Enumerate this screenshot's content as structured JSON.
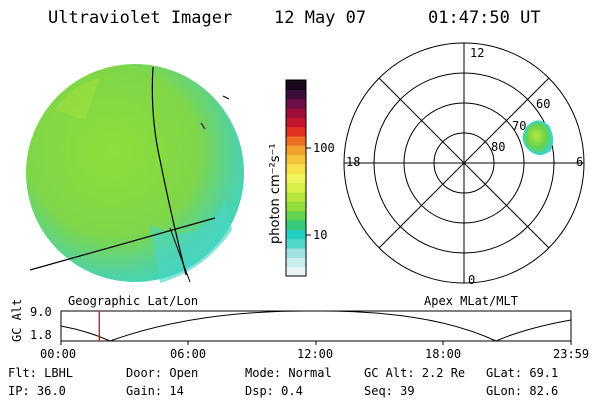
{
  "header": {
    "instrument": "Ultraviolet Imager",
    "date": "12 May 07",
    "time": "01:47:50 UT"
  },
  "colorbar": {
    "label": "photon cm⁻²s⁻¹",
    "tick_100": "100",
    "tick_10": "10",
    "colors": [
      "#eaf6f6",
      "#c9ecec",
      "#9fe2df",
      "#4fd8c8",
      "#22cfc0",
      "#38c97a",
      "#62d34e",
      "#8fdd3a",
      "#b8e63a",
      "#d8ef48",
      "#f1f65a",
      "#f7e24a",
      "#f6c43a",
      "#f2a12d",
      "#eb6e23",
      "#e2321f",
      "#c5142d",
      "#9e0f3a",
      "#6f0f4a",
      "#3b0d3c",
      "#160818"
    ]
  },
  "polar": {
    "labels": [
      "12",
      "18",
      "6",
      "0",
      "60",
      "70",
      "80"
    ]
  },
  "panel_labels": {
    "left": "Geographic Lat/Lon",
    "right": "Apex MLat/MLT"
  },
  "gc_plot": {
    "axis_label": "GC Alt",
    "ytick_top": "9.0",
    "ytick_bottom": "1.8",
    "xticks": [
      "00:00",
      "06:00",
      "12:00",
      "18:00",
      "23:59"
    ],
    "current_marker_hour": 1.8
  },
  "footer": {
    "flt": "Flt: LBHL",
    "ip": "IP: 36.0",
    "door": "Door: Open",
    "gain": "Gain: 14",
    "mode": "Mode: Normal",
    "dsp": "Dsp:    0.4",
    "gcalt": "GC Alt: 2.2 Re",
    "seq": "Seq: 39",
    "glat": "GLat:  69.1",
    "glon": "GLon:  82.6"
  }
}
